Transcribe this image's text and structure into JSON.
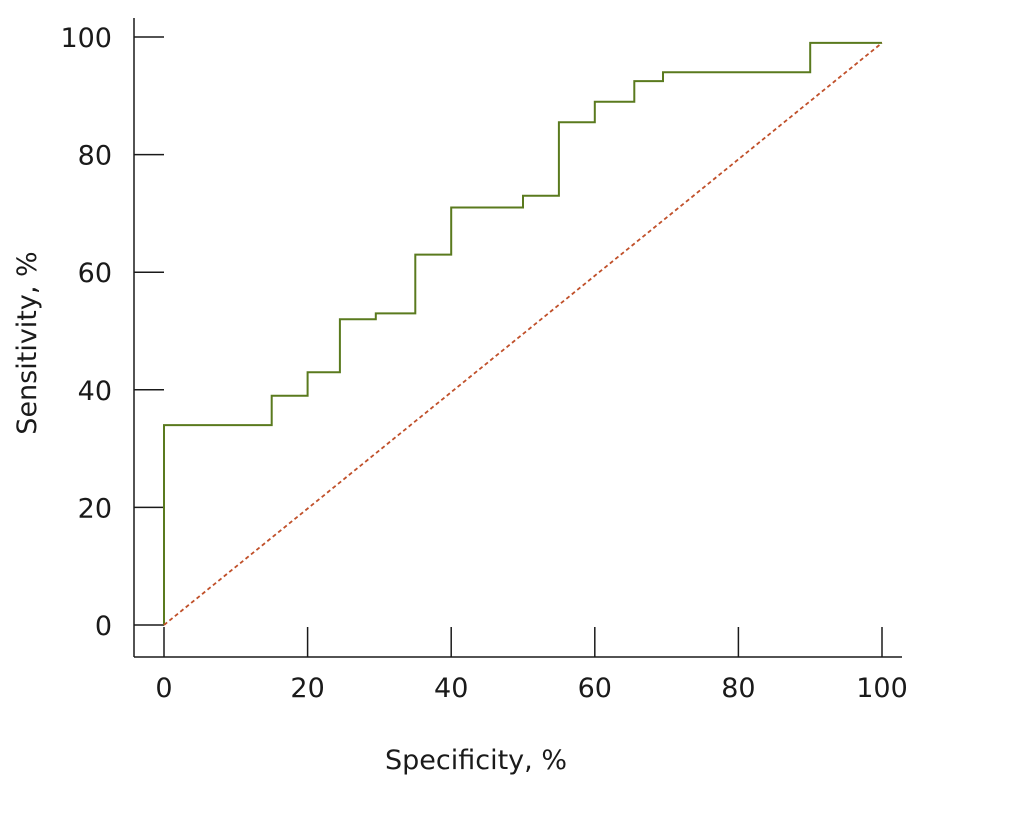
{
  "chart_data": {
    "type": "line",
    "xlabel": "Specificity, %",
    "ylabel": "Sensitivity, %",
    "xlim": [
      0,
      100
    ],
    "ylim": [
      0,
      100
    ],
    "x_ticks": [
      "0",
      "20",
      "40",
      "60",
      "80",
      "100"
    ],
    "y_ticks": [
      "0",
      "20",
      "40",
      "60",
      "80",
      "100"
    ],
    "grid": false,
    "series": [
      {
        "style": "step",
        "color": "#5a7a1e",
        "x": [
          0,
          0,
          15,
          15,
          20,
          20,
          24.5,
          24.5,
          29.5,
          29.5,
          35,
          35,
          40,
          40,
          50,
          50,
          55,
          55,
          60,
          60,
          65.5,
          65.5,
          69.5,
          69.5,
          90,
          90,
          100
        ],
        "y": [
          0,
          34,
          34,
          39,
          39,
          43,
          43,
          52,
          52,
          53,
          53,
          63,
          63,
          71,
          71,
          73,
          73,
          85.5,
          85.5,
          89,
          89,
          92.5,
          92.5,
          94,
          94,
          99,
          99
        ]
      },
      {
        "style": "dotted",
        "color": "#c0502a",
        "x": [
          0,
          100
        ],
        "y": [
          0,
          99
        ]
      }
    ]
  }
}
